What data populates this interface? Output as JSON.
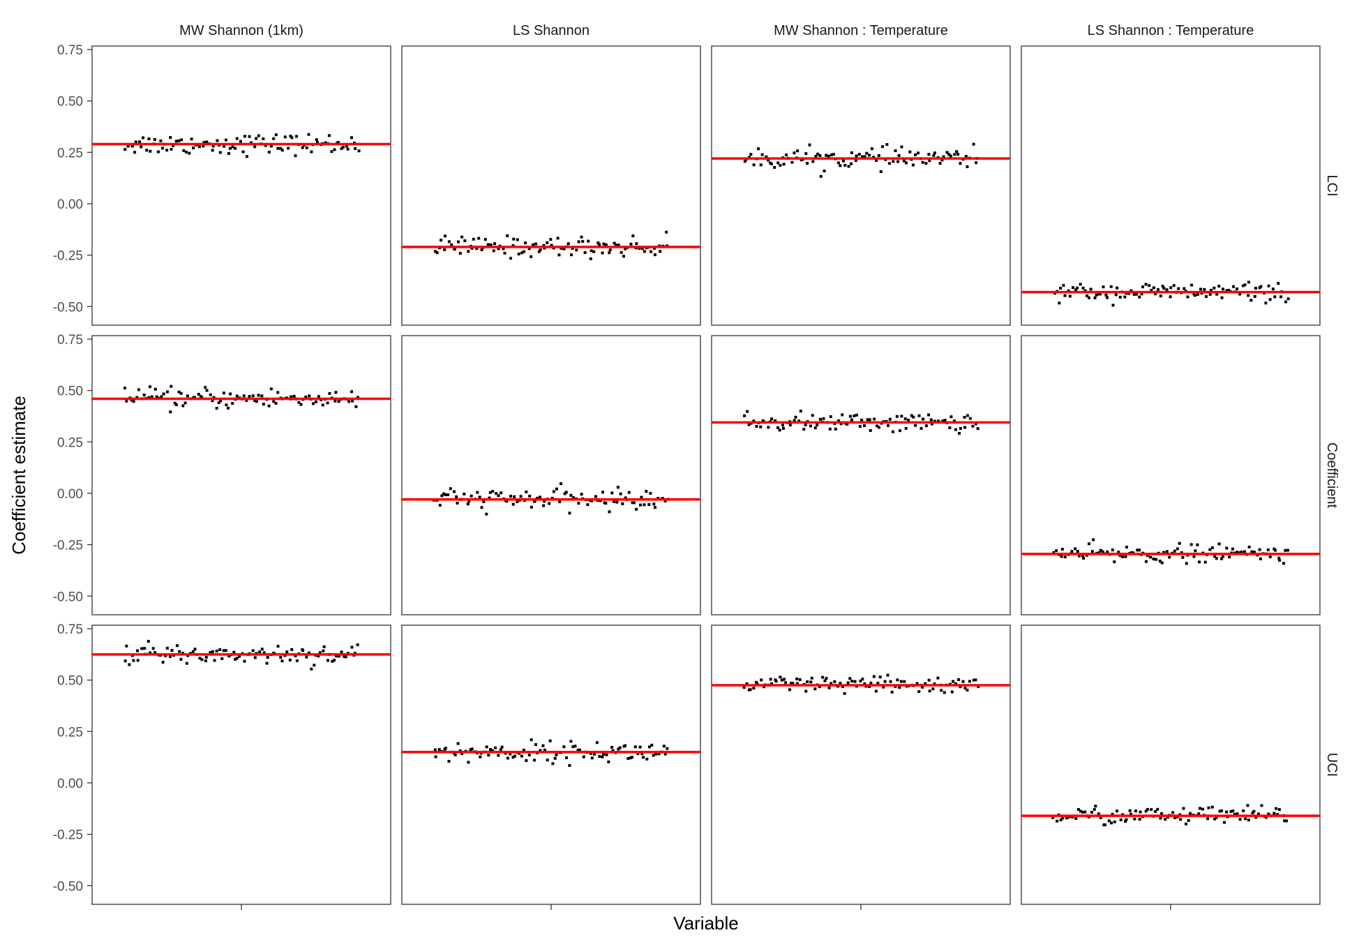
{
  "chart_data": {
    "type": "scatter",
    "title": "",
    "xlabel": "Variable",
    "ylabel": "Coefficient estimate",
    "ylim": [
      -0.55,
      0.75
    ],
    "y_ticks": [
      "0.75",
      "0.50",
      "0.25",
      "0.00",
      "-0.25",
      "-0.50"
    ],
    "x_tick_labels": [
      ""
    ],
    "grid": false,
    "legend": "none",
    "colors": {
      "points": "#000000",
      "mean_line": "#ff0000",
      "panel_border": "#333333"
    },
    "columns": [
      "MW Shannon (1km)",
      "LS Shannon",
      "MW Shannon : Temperature",
      "LS Shannon : Temperature"
    ],
    "rows": [
      "LCI",
      "Coefficient",
      "UCI"
    ],
    "panels": [
      {
        "row": "LCI",
        "column": "MW Shannon (1km)",
        "mean": 0.29,
        "spread": 0.025,
        "n_points": 100
      },
      {
        "row": "LCI",
        "column": "LS Shannon",
        "mean": -0.21,
        "spread": 0.025,
        "n_points": 100
      },
      {
        "row": "LCI",
        "column": "MW Shannon : Temperature",
        "mean": 0.22,
        "spread": 0.025,
        "n_points": 100
      },
      {
        "row": "LCI",
        "column": "LS Shannon : Temperature",
        "mean": -0.43,
        "spread": 0.022,
        "n_points": 100
      },
      {
        "row": "Coefficient",
        "column": "MW Shannon (1km)",
        "mean": 0.46,
        "spread": 0.025,
        "n_points": 100
      },
      {
        "row": "Coefficient",
        "column": "LS Shannon",
        "mean": -0.03,
        "spread": 0.025,
        "n_points": 100
      },
      {
        "row": "Coefficient",
        "column": "MW Shannon : Temperature",
        "mean": 0.345,
        "spread": 0.022,
        "n_points": 100
      },
      {
        "row": "Coefficient",
        "column": "LS Shannon : Temperature",
        "mean": -0.295,
        "spread": 0.022,
        "n_points": 100
      },
      {
        "row": "UCI",
        "column": "MW Shannon (1km)",
        "mean": 0.625,
        "spread": 0.025,
        "n_points": 100
      },
      {
        "row": "UCI",
        "column": "LS Shannon",
        "mean": 0.15,
        "spread": 0.025,
        "n_points": 100
      },
      {
        "row": "UCI",
        "column": "MW Shannon : Temperature",
        "mean": 0.475,
        "spread": 0.022,
        "n_points": 100
      },
      {
        "row": "UCI",
        "column": "LS Shannon : Temperature",
        "mean": -0.16,
        "spread": 0.022,
        "n_points": 100
      }
    ]
  }
}
